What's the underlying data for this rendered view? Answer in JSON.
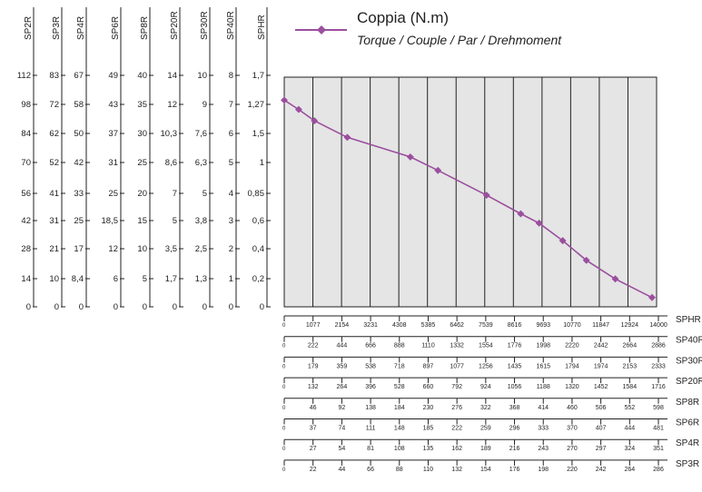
{
  "chart_data": {
    "type": "line",
    "legend": {
      "title": "Coppia (N.m)",
      "subtitle": "Torque / Couple / Par / Drehmoment",
      "placement": "top-right"
    },
    "line_color": "#9b4f9e",
    "plot_background": "#e5e5e5",
    "grid": true,
    "left_axes": [
      {
        "name": "SP2R",
        "ticks": [
          "112",
          "98",
          "84",
          "70",
          "56",
          "42",
          "28",
          "14",
          "0"
        ]
      },
      {
        "name": "SP3R",
        "ticks": [
          "83",
          "72",
          "62",
          "52",
          "41",
          "31",
          "21",
          "10",
          "0"
        ]
      },
      {
        "name": "SP4R",
        "ticks": [
          "67",
          "58",
          "50",
          "42",
          "33",
          "25",
          "17",
          "8,4",
          "0"
        ]
      },
      {
        "name": "SP6R",
        "ticks": [
          "49",
          "43",
          "37",
          "31",
          "25",
          "18,5",
          "12",
          "6",
          "0"
        ]
      },
      {
        "name": "SP8R",
        "ticks": [
          "40",
          "35",
          "30",
          "25",
          "20",
          "15",
          "10",
          "5",
          "0"
        ]
      },
      {
        "name": "SP20R",
        "ticks": [
          "14",
          "12",
          "10,3",
          "8,6",
          "7",
          "5",
          "3,5",
          "1,7",
          "0"
        ]
      },
      {
        "name": "SP30R",
        "ticks": [
          "10",
          "9",
          "7,6",
          "6,3",
          "5",
          "3,8",
          "2,5",
          "1,3",
          "0"
        ]
      },
      {
        "name": "SP40R",
        "ticks": [
          "8",
          "7",
          "6",
          "5",
          "4",
          "3",
          "2",
          "1",
          "0"
        ]
      },
      {
        "name": "SPHR",
        "ticks": [
          "1,7",
          "1,27",
          "1,5",
          "1",
          "0,85",
          "0,6",
          "0,4",
          "0,2",
          "0"
        ]
      }
    ],
    "bottom_axes": [
      {
        "name": "SPHR",
        "ticks": [
          "0",
          "1077",
          "2154",
          "3231",
          "4308",
          "5385",
          "6462",
          "7539",
          "8616",
          "9693",
          "10770",
          "11847",
          "12924",
          "14000"
        ]
      },
      {
        "name": "SP40R",
        "ticks": [
          "0",
          "222",
          "444",
          "666",
          "888",
          "1110",
          "1332",
          "1554",
          "1776",
          "1998",
          "2220",
          "2442",
          "2664",
          "2886"
        ]
      },
      {
        "name": "SP30R",
        "ticks": [
          "0",
          "179",
          "359",
          "538",
          "718",
          "897",
          "1077",
          "1256",
          "1435",
          "1615",
          "1794",
          "1974",
          "2153",
          "2333"
        ]
      },
      {
        "name": "SP20R",
        "ticks": [
          "0",
          "132",
          "264",
          "396",
          "528",
          "660",
          "792",
          "924",
          "1056",
          "1188",
          "1320",
          "1452",
          "1584",
          "1716"
        ]
      },
      {
        "name": "SP8R",
        "ticks": [
          "0",
          "46",
          "92",
          "138",
          "184",
          "230",
          "276",
          "322",
          "368",
          "414",
          "460",
          "506",
          "552",
          "598"
        ]
      },
      {
        "name": "SP6R",
        "ticks": [
          "0",
          "37",
          "74",
          "111",
          "148",
          "185",
          "222",
          "259",
          "296",
          "333",
          "370",
          "407",
          "444",
          "481"
        ]
      },
      {
        "name": "SP4R",
        "ticks": [
          "0",
          "27",
          "54",
          "81",
          "108",
          "135",
          "162",
          "189",
          "216",
          "243",
          "270",
          "297",
          "324",
          "351"
        ]
      },
      {
        "name": "SP3R",
        "ticks": [
          "0",
          "22",
          "44",
          "66",
          "88",
          "110",
          "132",
          "154",
          "176",
          "198",
          "220",
          "242",
          "264",
          "286"
        ]
      }
    ],
    "series": [
      {
        "x": [
          0,
          1077,
          2154,
          3231,
          4308,
          5385,
          6462,
          7539,
          8616,
          9693,
          10770,
          11847,
          12924,
          14000
        ],
        "y": [
          112,
          103,
          94,
          84,
          75,
          66,
          57,
          47,
          38,
          29,
          20,
          12,
          5,
          0
        ],
        "x_sphr": [
          0,
          550,
          1150,
          2400,
          4800,
          5850,
          7700,
          9000,
          9700,
          10600,
          11500,
          12600,
          14000
        ],
        "y_sp2r": [
          100,
          95.5,
          90,
          82,
          72.5,
          66,
          54,
          45,
          40.5,
          32,
          22.5,
          13.5,
          4.5
        ]
      }
    ]
  }
}
